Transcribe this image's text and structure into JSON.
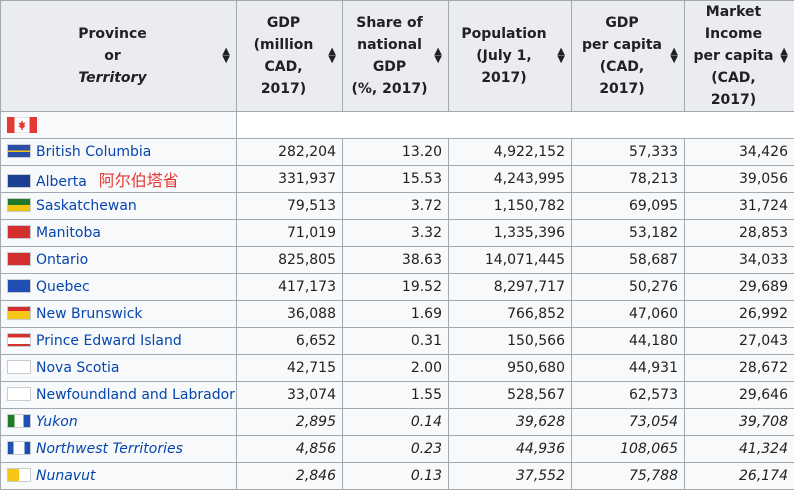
{
  "headers": [
    {
      "lines": [
        "Province",
        "or"
      ],
      "italic_line": "Territory"
    },
    {
      "lines": [
        "GDP",
        "(million",
        "CAD, 2017)"
      ]
    },
    {
      "lines": [
        "Share of",
        "national GDP",
        "(%, 2017)"
      ]
    },
    {
      "lines": [
        "Population",
        "(July 1, 2017)"
      ]
    },
    {
      "lines": [
        "GDP",
        "per capita",
        "(CAD, 2017)"
      ]
    },
    {
      "lines": [
        "Market",
        "Income",
        "per capita",
        "(CAD, 2017)"
      ]
    }
  ],
  "annotation": "阿尔伯塔省",
  "rows": [
    {
      "name": "British Columbia",
      "flag": "bc-flag-icon",
      "gdp": "282,204",
      "share": "13.20",
      "pop": "4,922,152",
      "gdppc": "57,333",
      "mipc": "34,426"
    },
    {
      "name": "Alberta",
      "flag": "ab-flag-icon",
      "gdp": "331,937",
      "share": "15.53",
      "pop": "4,243,995",
      "gdppc": "78,213",
      "mipc": "39,056"
    },
    {
      "name": "Saskatchewan",
      "flag": "sk-flag-icon",
      "gdp": "79,513",
      "share": "3.72",
      "pop": "1,150,782",
      "gdppc": "69,095",
      "mipc": "31,724"
    },
    {
      "name": "Manitoba",
      "flag": "mb-flag-icon",
      "gdp": "71,019",
      "share": "3.32",
      "pop": "1,335,396",
      "gdppc": "53,182",
      "mipc": "28,853"
    },
    {
      "name": "Ontario",
      "flag": "on-flag-icon",
      "gdp": "825,805",
      "share": "38.63",
      "pop": "14,071,445",
      "gdppc": "58,687",
      "mipc": "34,033"
    },
    {
      "name": "Quebec",
      "flag": "qc-flag-icon",
      "gdp": "417,173",
      "share": "19.52",
      "pop": "8,297,717",
      "gdppc": "50,276",
      "mipc": "29,689"
    },
    {
      "name": "New Brunswick",
      "flag": "nb-flag-icon",
      "gdp": "36,088",
      "share": "1.69",
      "pop": "766,852",
      "gdppc": "47,060",
      "mipc": "26,992"
    },
    {
      "name": "Prince Edward Island",
      "flag": "pe-flag-icon",
      "gdp": "6,652",
      "share": "0.31",
      "pop": "150,566",
      "gdppc": "44,180",
      "mipc": "27,043"
    },
    {
      "name": "Nova Scotia",
      "flag": "ns-flag-icon",
      "gdp": "42,715",
      "share": "2.00",
      "pop": "950,680",
      "gdppc": "44,931",
      "mipc": "28,672"
    },
    {
      "name": "Newfoundland and Labrador",
      "flag": "nl-flag-icon",
      "gdp": "33,074",
      "share": "1.55",
      "pop": "528,567",
      "gdppc": "62,573",
      "mipc": "29,646"
    },
    {
      "name": "Yukon",
      "flag": "yt-flag-icon",
      "gdp": "2,895",
      "share": "0.14",
      "pop": "39,628",
      "gdppc": "73,054",
      "mipc": "39,708",
      "italic": true
    },
    {
      "name": "Northwest Territories",
      "flag": "nt-flag-icon",
      "gdp": "4,856",
      "share": "0.23",
      "pop": "44,936",
      "gdppc": "108,065",
      "mipc": "41,324",
      "italic": true
    },
    {
      "name": "Nunavut",
      "flag": "nu-flag-icon",
      "gdp": "2,846",
      "share": "0.13",
      "pop": "37,552",
      "gdppc": "75,788",
      "mipc": "26,174",
      "italic": true
    }
  ]
}
